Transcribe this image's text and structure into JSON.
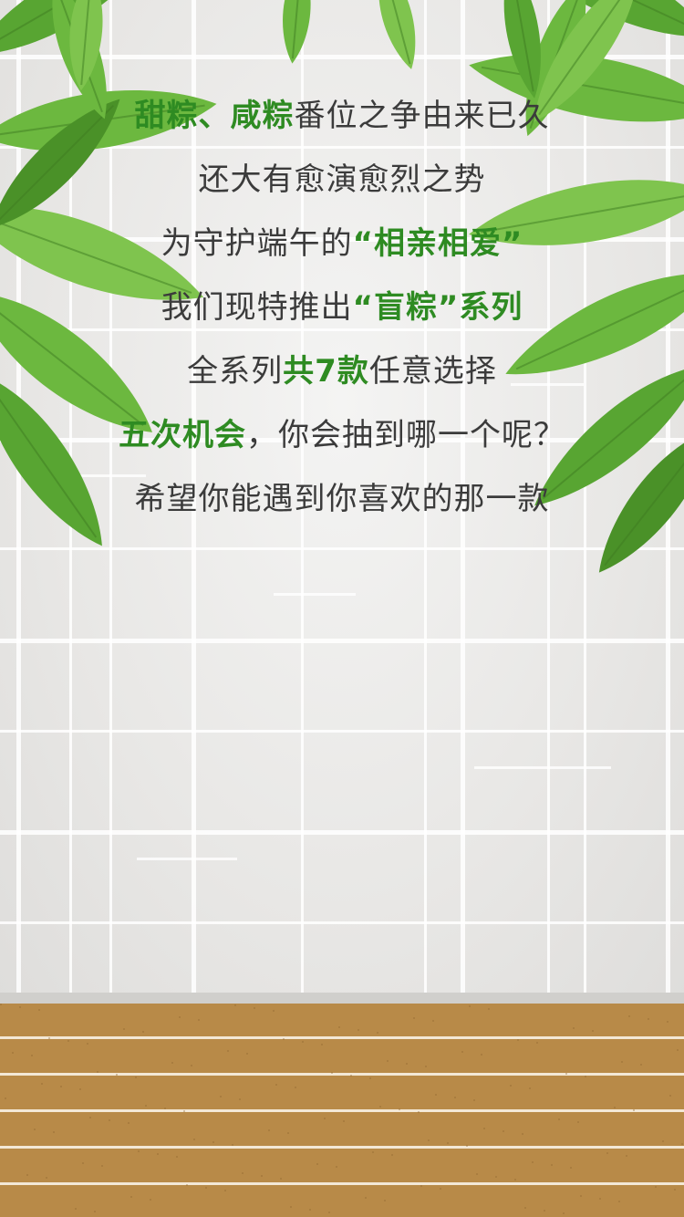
{
  "colors": {
    "text": "#3b3b3b",
    "highlight": "#2e8b22",
    "wall": "#e9e8e6",
    "grid": "#ffffff",
    "floor": "#b88a48",
    "leaf": "#5fae3a"
  },
  "poem": {
    "lines": [
      [
        {
          "text": "甜粽、",
          "highlight": true
        },
        {
          "text": "咸粽",
          "highlight": true
        },
        {
          "text": "番位之争由来已久",
          "highlight": false
        }
      ],
      [
        {
          "text": "还大有愈演愈烈之势",
          "highlight": false
        }
      ],
      [
        {
          "text": "为守护端午的",
          "highlight": false
        },
        {
          "text": "“相亲相爱”",
          "highlight": true
        }
      ],
      [
        {
          "text": "我们现特推出",
          "highlight": false
        },
        {
          "text": "“盲粽”系列",
          "highlight": true
        }
      ],
      [
        {
          "text": "全系列",
          "highlight": false
        },
        {
          "text": "共7款",
          "highlight": true
        },
        {
          "text": "任意选择",
          "highlight": false
        }
      ],
      [
        {
          "text": "五次机会",
          "highlight": true
        },
        {
          "text": "，你会抽到哪一个呢？",
          "highlight": false
        }
      ],
      [
        {
          "text": "希望你能遇到你喜欢的那一款",
          "highlight": false
        }
      ]
    ]
  },
  "decorations": {
    "leaves": "bamboo-leaves",
    "background": "tiled-wall",
    "floor": "wooden-floor"
  }
}
